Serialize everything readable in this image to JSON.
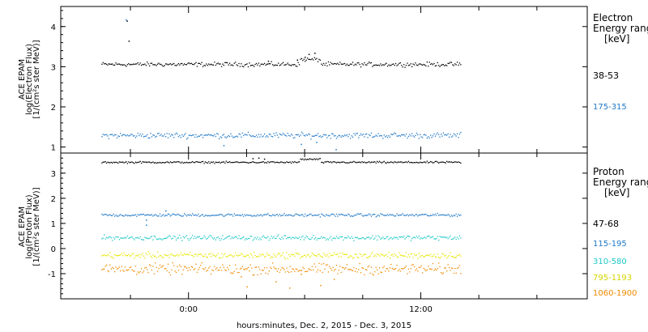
{
  "chart_data": [
    {
      "type": "scatter",
      "panel": "electron",
      "ylabel": [
        "ACE EPAM",
        "log(Electron Flux)",
        "[1/(cm²s ster MeV)]"
      ],
      "ylim": [
        0.85,
        4.5
      ],
      "yticks": [
        1,
        2,
        3,
        4
      ],
      "legend_title": [
        "Electron",
        "Energy ranges",
        "[keV]"
      ],
      "series": [
        {
          "name": "38-53",
          "color": "#000000",
          "level": 3.07,
          "noise": 0.045,
          "x_range": [
            -4.5,
            14.1
          ],
          "points": [
            [
              -3.1,
              3.65
            ],
            [
              -3.2,
              4.15
            ],
            [
              6.0,
              3.25
            ],
            [
              6.2,
              3.32
            ],
            [
              6.5,
              3.35
            ],
            [
              4.1,
              3.15
            ],
            [
              5.6,
              3.18
            ]
          ]
        },
        {
          "name": "175-315",
          "color": "#1f78c8",
          "level": 1.3,
          "noise": 0.06,
          "x_range": [
            -4.5,
            14.1
          ],
          "points": [
            [
              -3.25,
              4.18
            ],
            [
              5.8,
              1.08
            ],
            [
              6.6,
              1.13
            ],
            [
              1.8,
              1.05
            ],
            [
              7.6,
              0.95
            ]
          ]
        }
      ]
    },
    {
      "type": "scatter",
      "panel": "proton",
      "ylabel": [
        "ACE EPAM",
        "log(Proton Flux)",
        "[1/(cm²s ster MeV)]"
      ],
      "ylim": [
        -2.0,
        3.8
      ],
      "yticks": [
        -1,
        0,
        1,
        2,
        3
      ],
      "legend_title": [
        "Proton",
        "Energy ranges",
        "[keV]"
      ],
      "series": [
        {
          "name": "47-68",
          "color": "#000000",
          "level": 3.45,
          "noise": 0.03,
          "x_range": [
            -4.5,
            14.1
          ],
          "points": [
            [
              3.3,
              3.6
            ],
            [
              3.6,
              3.62
            ],
            [
              3.9,
              3.58
            ]
          ]
        },
        {
          "name": "115-195",
          "color": "#1f78c8",
          "level": 1.35,
          "noise": 0.05,
          "x_range": [
            -4.5,
            14.1
          ],
          "points": [
            [
              -2.2,
              1.15
            ],
            [
              -2.2,
              0.95
            ],
            [
              -1.2,
              1.52
            ]
          ]
        },
        {
          "name": "310-580",
          "color": "#20c8c8",
          "level": 0.45,
          "noise": 0.08,
          "x_range": [
            -4.5,
            14.1
          ],
          "points": []
        },
        {
          "name": "795-1193",
          "color": "#e6e600",
          "level": -0.25,
          "noise": 0.1,
          "x_range": [
            -4.5,
            14.1
          ],
          "points": []
        },
        {
          "name": "1060-1900",
          "color": "#f08a00",
          "level": -0.8,
          "noise": 0.18,
          "x_range": [
            -4.5,
            14.1
          ],
          "points": [
            [
              3.0,
              -1.5
            ],
            [
              4.5,
              -1.3
            ],
            [
              5.2,
              -1.55
            ],
            [
              6.8,
              -1.45
            ],
            [
              7.5,
              -1.2
            ],
            [
              5.8,
              -1.0
            ],
            [
              2.7,
              -1.1
            ]
          ]
        }
      ]
    }
  ],
  "x_axis": {
    "range": [
      -6.6,
      20.6
    ],
    "tick_labels": [
      {
        "x": 0,
        "label": "0:00"
      },
      {
        "x": 12,
        "label": "12:00"
      }
    ],
    "minor_ticks": [
      -3,
      3,
      6,
      9,
      15,
      18
    ],
    "xlabel": "hours:minutes, Dec.  2, 2015 - Dec.  3, 2015"
  }
}
